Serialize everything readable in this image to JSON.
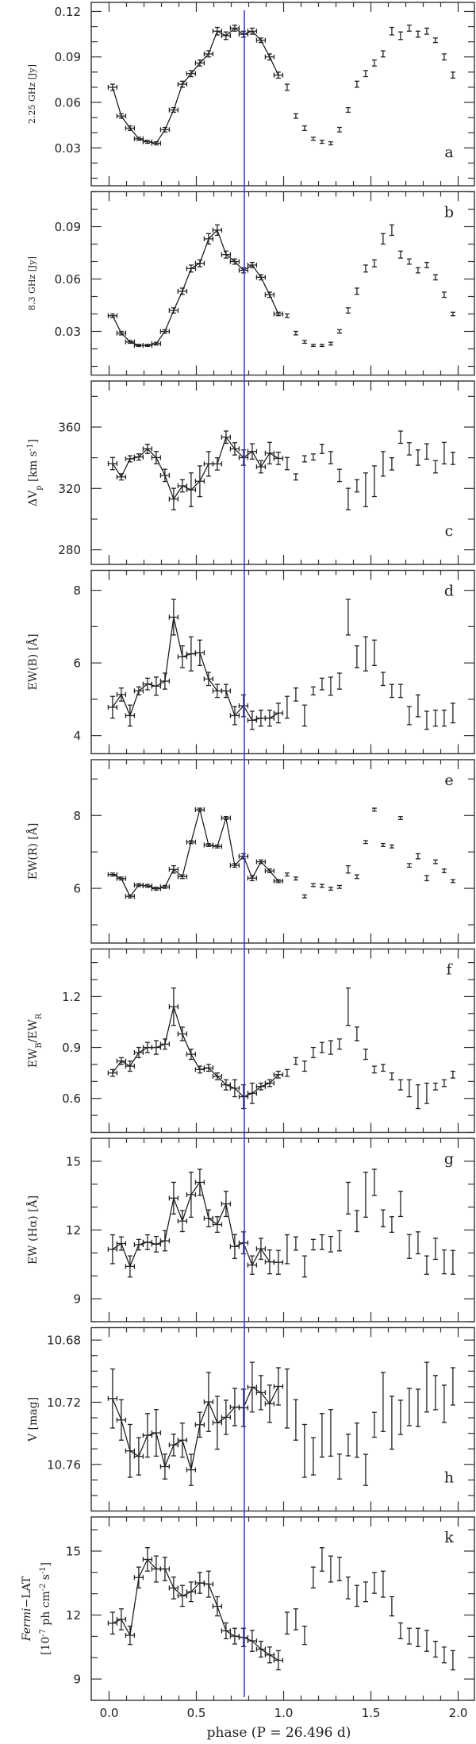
{
  "chart_data": {
    "type": "scatter",
    "xlabel": "phase  (P = 26.496 d)",
    "xlim": [
      -0.1,
      2.08
    ],
    "x_major_ticks": [
      0.0,
      0.5,
      1.0,
      1.5,
      2.0
    ],
    "x_tick_labels": [
      "0.0",
      "0.5",
      "1.0",
      "1.5",
      "2.0"
    ],
    "x_minor_step": 0.1,
    "marker_line": {
      "phase": 0.775,
      "color": "#3a3ae0"
    },
    "repeat_second_cycle": true,
    "phase": [
      0.02,
      0.07,
      0.12,
      0.17,
      0.22,
      0.27,
      0.32,
      0.37,
      0.42,
      0.47,
      0.52,
      0.57,
      0.62,
      0.67,
      0.72,
      0.77,
      0.82,
      0.87,
      0.92,
      0.97
    ],
    "phase_err": 0.025,
    "panels": [
      {
        "id": "a",
        "letter": "a",
        "letter_position": "bottom-right",
        "ylabel": "2.25 GHz [Jy]",
        "ylabel_small": true,
        "ylim": [
          0.005,
          0.126
        ],
        "inverted": false,
        "major": [
          0.03,
          0.06,
          0.09,
          0.12
        ],
        "major_labels": [
          "0.03",
          "0.06",
          "0.09",
          "0.12"
        ],
        "minor_step": 0.01,
        "values": [
          0.07,
          0.051,
          0.043,
          0.036,
          0.034,
          0.033,
          0.042,
          0.055,
          0.072,
          0.079,
          0.086,
          0.092,
          0.107,
          0.104,
          0.109,
          0.105,
          0.107,
          0.101,
          0.09,
          0.078
        ],
        "errors": [
          0.002,
          0.0015,
          0.0015,
          0.001,
          0.001,
          0.001,
          0.0015,
          0.0015,
          0.002,
          0.002,
          0.002,
          0.002,
          0.0025,
          0.0025,
          0.002,
          0.002,
          0.002,
          0.0015,
          0.002,
          0.002
        ]
      },
      {
        "id": "b",
        "letter": "b",
        "letter_position": "top-right",
        "ylabel": "8.3 GHz [Jy]",
        "ylabel_small": true,
        "ylim": [
          0.005,
          0.11
        ],
        "inverted": false,
        "major": [
          0.03,
          0.06,
          0.09
        ],
        "major_labels": [
          "0.03",
          "0.06",
          "0.09"
        ],
        "minor_step": 0.01,
        "values": [
          0.039,
          0.029,
          0.024,
          0.022,
          0.022,
          0.023,
          0.03,
          0.042,
          0.053,
          0.066,
          0.069,
          0.083,
          0.088,
          0.074,
          0.07,
          0.065,
          0.068,
          0.061,
          0.051,
          0.04
        ],
        "errors": [
          0.001,
          0.001,
          0.0008,
          0.0006,
          0.0006,
          0.0008,
          0.001,
          0.0015,
          0.0018,
          0.002,
          0.002,
          0.003,
          0.003,
          0.002,
          0.0015,
          0.0015,
          0.0015,
          0.0015,
          0.0015,
          0.001
        ]
      },
      {
        "id": "c",
        "letter": "c",
        "letter_position": "bottom-right",
        "ylabel": "ΔV_{p} [km s^{-1}]",
        "ylabel_small": false,
        "ylim": [
          270.5,
          390
        ],
        "inverted": false,
        "major": [
          280,
          320,
          360
        ],
        "major_labels": [
          "280",
          "320",
          "360"
        ],
        "minor_step": 20,
        "values": [
          336.2,
          327.5,
          339.3,
          340.5,
          345.8,
          340.1,
          328.5,
          313.1,
          321.7,
          319.1,
          324.7,
          336.0,
          336.0,
          353.4,
          345.8,
          340.1,
          344.1,
          334.1,
          343.0,
          339.6
        ],
        "errors": [
          4,
          2,
          2,
          2,
          3,
          4,
          4,
          7,
          4,
          11,
          10,
          8,
          4,
          4,
          4,
          5,
          5,
          4,
          7,
          4
        ]
      },
      {
        "id": "d",
        "letter": "d",
        "letter_position": "top-right",
        "ylabel": "EW(B) [Å]",
        "ylabel_small": false,
        "ylim": [
          3.5,
          8.55
        ],
        "inverted": false,
        "major": [
          4,
          6,
          8
        ],
        "major_labels": [
          "4",
          "6",
          "8"
        ],
        "minor_step": 1,
        "values": [
          4.78,
          5.13,
          4.55,
          5.23,
          5.42,
          5.36,
          5.5,
          7.26,
          6.17,
          6.25,
          6.28,
          5.56,
          5.23,
          5.23,
          4.55,
          4.82,
          4.42,
          4.48,
          4.48,
          4.62
        ],
        "errors": [
          0.3,
          0.18,
          0.29,
          0.11,
          0.16,
          0.25,
          0.22,
          0.49,
          0.3,
          0.47,
          0.35,
          0.18,
          0.18,
          0.18,
          0.25,
          0.3,
          0.25,
          0.22,
          0.22,
          0.27
        ]
      },
      {
        "id": "e",
        "letter": "e",
        "letter_position": "top-right",
        "ylabel": "EW(R) [Å]",
        "ylabel_small": false,
        "ylim": [
          4.5,
          9.53
        ],
        "inverted": false,
        "major": [
          6,
          8
        ],
        "major_labels": [
          "6",
          "8"
        ],
        "minor_step": 1,
        "values": [
          6.38,
          6.27,
          5.78,
          6.09,
          6.07,
          5.99,
          6.04,
          6.52,
          6.32,
          7.27,
          8.16,
          7.19,
          7.15,
          7.93,
          6.63,
          6.88,
          6.28,
          6.73,
          6.48,
          6.2
        ],
        "errors": [
          0.04,
          0.04,
          0.04,
          0.04,
          0.04,
          0.04,
          0.04,
          0.1,
          0.05,
          0.04,
          0.04,
          0.04,
          0.04,
          0.04,
          0.05,
          0.07,
          0.07,
          0.05,
          0.05,
          0.04
        ]
      },
      {
        "id": "f",
        "letter": "f",
        "letter_position": "top-right",
        "ylabel": "EW_{B}/EW_{R}",
        "ylabel_small": false,
        "ylim": [
          0.4,
          1.48
        ],
        "inverted": false,
        "major": [
          0.6,
          0.9,
          1.2
        ],
        "major_labels": [
          "0.6",
          "0.9",
          "1.2"
        ],
        "minor_step": 0.1,
        "values": [
          0.75,
          0.82,
          0.79,
          0.87,
          0.9,
          0.9,
          0.92,
          1.14,
          0.98,
          0.86,
          0.77,
          0.78,
          0.73,
          0.68,
          0.66,
          0.61,
          0.63,
          0.67,
          0.69,
          0.74
        ],
        "errors": [
          0.02,
          0.02,
          0.03,
          0.03,
          0.03,
          0.04,
          0.03,
          0.11,
          0.04,
          0.03,
          0.02,
          0.02,
          0.02,
          0.03,
          0.05,
          0.07,
          0.06,
          0.02,
          0.02,
          0.02
        ]
      },
      {
        "id": "g",
        "letter": "g",
        "letter_position": "top-right",
        "ylabel": "EW (Hα) [Å]",
        "ylabel_small": false,
        "ylim": [
          8.0,
          16.0
        ],
        "inverted": false,
        "major": [
          9,
          12,
          15
        ],
        "major_labels": [
          "9",
          "12",
          "15"
        ],
        "minor_step": 1,
        "values": [
          11.16,
          11.41,
          10.41,
          11.36,
          11.47,
          11.38,
          11.53,
          13.39,
          12.39,
          13.54,
          14.08,
          12.51,
          12.24,
          13.14,
          11.28,
          11.44,
          10.47,
          11.18,
          10.61,
          10.59
        ],
        "errors": [
          0.63,
          0.29,
          0.46,
          0.23,
          0.32,
          0.34,
          0.44,
          0.69,
          0.46,
          0.98,
          0.57,
          0.37,
          0.34,
          0.55,
          0.52,
          0.48,
          0.4,
          0.46,
          0.52,
          0.52
        ]
      },
      {
        "id": "h",
        "letter": "h",
        "letter_position": "bottom-right",
        "ylabel": "V [mag]",
        "ylabel_small": false,
        "ylim": [
          10.672,
          10.79
        ],
        "inverted": true,
        "major": [
          10.68,
          10.72,
          10.76
        ],
        "major_labels": [
          "10.68",
          "10.72",
          "10.76"
        ],
        "minor_step": 0.01,
        "values": [
          10.7176,
          10.7314,
          10.7513,
          10.7548,
          10.7413,
          10.7397,
          10.7614,
          10.7475,
          10.7444,
          10.7635,
          10.7345,
          10.7198,
          10.7332,
          10.7297,
          10.7231,
          10.7236,
          10.7103,
          10.7138,
          10.721,
          10.7098
        ],
        "errors": [
          0.019,
          0.013,
          0.017,
          0.012,
          0.014,
          0.015,
          0.008,
          0.007,
          0.011,
          0.01,
          0.008,
          0.019,
          0.017,
          0.011,
          0.012,
          0.012,
          0.016,
          0.011,
          0.012,
          0.012
        ]
      },
      {
        "id": "k",
        "letter": "k",
        "letter_position": "top-right",
        "ylabel": "*Fermi*−LAT",
        "ylabel2": "[10^{-7} ph cm^{-2} s^{-1}]",
        "ylabel_small": false,
        "ylim": [
          8.0,
          16.6
        ],
        "inverted": false,
        "major": [
          9,
          12,
          15
        ],
        "major_labels": [
          "9",
          "12",
          "15"
        ],
        "minor_step": 1,
        "values": [
          11.62,
          11.8,
          11.05,
          13.76,
          14.61,
          14.16,
          14.16,
          13.27,
          12.9,
          13.09,
          13.51,
          13.45,
          12.41,
          11.26,
          11.01,
          10.95,
          10.79,
          10.4,
          10.13,
          9.88
        ],
        "errors": [
          0.51,
          0.49,
          0.43,
          0.49,
          0.55,
          0.61,
          0.55,
          0.51,
          0.49,
          0.46,
          0.49,
          0.61,
          0.45,
          0.37,
          0.37,
          0.43,
          0.49,
          0.37,
          0.37,
          0.45
        ]
      }
    ]
  }
}
